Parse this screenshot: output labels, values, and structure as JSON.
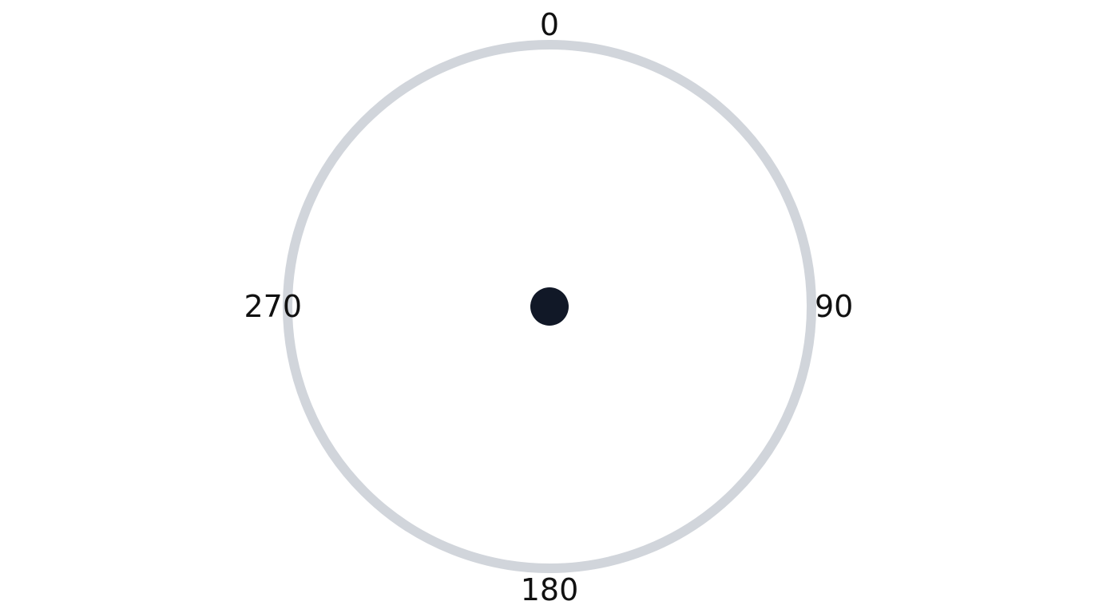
{
  "dial": {
    "labels": {
      "top": "0",
      "right": "90",
      "bottom": "180",
      "left": "270"
    },
    "colors": {
      "ring": "#d1d5db",
      "center_dot": "#111827",
      "background": "#ffffff",
      "label_text": "#111111"
    }
  }
}
